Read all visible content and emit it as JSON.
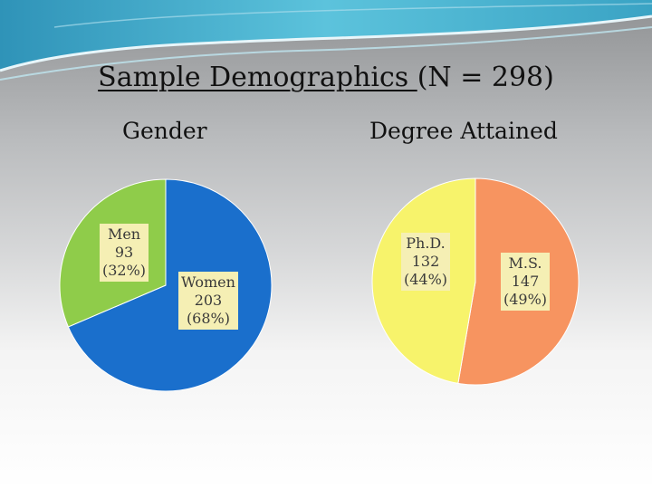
{
  "title": {
    "main": "Sample Demographics ",
    "suffix": "(N = 298)"
  },
  "colors": {
    "women": "#1a6fcc",
    "men": "#8fcc4a",
    "phd": "#f7f36b",
    "ms": "#f79460",
    "label_bg": "#f5efb4",
    "banner": "#3aa3c4"
  },
  "chart_data": [
    {
      "type": "pie",
      "title": "Gender",
      "slices": [
        {
          "key": "women",
          "name": "Women",
          "value": 203,
          "percent": "(68%)"
        },
        {
          "key": "men",
          "name": "Men",
          "value": 93,
          "percent": "(32%)"
        }
      ]
    },
    {
      "type": "pie",
      "title": "Degree Attained",
      "slices": [
        {
          "key": "ms",
          "name": "M.S.",
          "value": 147,
          "percent": "(49%)"
        },
        {
          "key": "phd",
          "name": "Ph.D.",
          "value": 132,
          "percent": "(44%)"
        }
      ]
    }
  ]
}
